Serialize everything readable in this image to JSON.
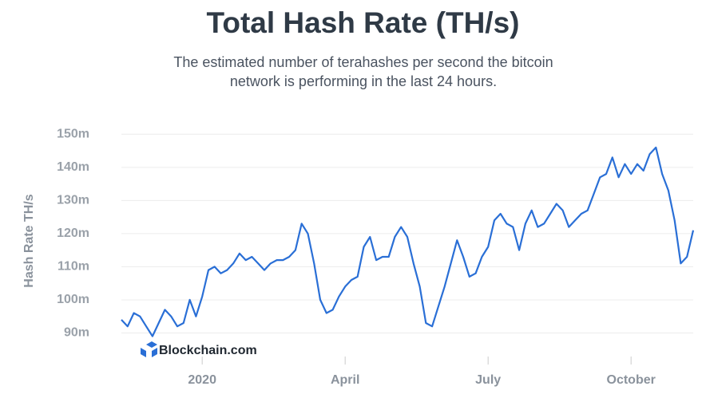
{
  "chart_data": {
    "type": "line",
    "title": "Total Hash Rate (TH/s)",
    "subtitle": "The estimated number of terahashes per second the bitcoin network is performing in the last 24 hours.",
    "ylabel": "Hash Rate TH/s",
    "watermark": "Blockchain.com",
    "categories": [
      null,
      null,
      null,
      null,
      null,
      null,
      null,
      null,
      null,
      null,
      null,
      null,
      null,
      "2020",
      null,
      null,
      null,
      null,
      null,
      null,
      null,
      null,
      null,
      null,
      null,
      null,
      null,
      null,
      null,
      null,
      null,
      null,
      null,
      null,
      null,
      null,
      "April",
      null,
      null,
      null,
      null,
      null,
      null,
      null,
      null,
      null,
      null,
      null,
      null,
      null,
      null,
      null,
      null,
      null,
      null,
      null,
      null,
      null,
      null,
      "July",
      null,
      null,
      null,
      null,
      null,
      null,
      null,
      null,
      null,
      null,
      null,
      null,
      null,
      null,
      null,
      null,
      null,
      null,
      null,
      null,
      null,
      null,
      "October",
      null,
      null,
      null,
      null,
      null,
      null,
      null,
      null,
      null,
      null
    ],
    "series": [
      {
        "name": "Hash Rate",
        "color": "#2a6fd6",
        "values": [
          94000000,
          92000000,
          96000000,
          95000000,
          92000000,
          89000000,
          93000000,
          97000000,
          95000000,
          92000000,
          93000000,
          100000000,
          95000000,
          101000000,
          109000000,
          110000000,
          108000000,
          109000000,
          111000000,
          114000000,
          112000000,
          113000000,
          111000000,
          109000000,
          111000000,
          112000000,
          112000000,
          113000000,
          115000000,
          123000000,
          120000000,
          111000000,
          100000000,
          96000000,
          97000000,
          101000000,
          104000000,
          106000000,
          107000000,
          116000000,
          119000000,
          112000000,
          113000000,
          113000000,
          119000000,
          122000000,
          119000000,
          111000000,
          104000000,
          93000000,
          92000000,
          98000000,
          104000000,
          111000000,
          118000000,
          113000000,
          107000000,
          108000000,
          113000000,
          116000000,
          124000000,
          126000000,
          123000000,
          122000000,
          115000000,
          123000000,
          127000000,
          122000000,
          123000000,
          126000000,
          129000000,
          127000000,
          122000000,
          124000000,
          126000000,
          127000000,
          132000000,
          137000000,
          138000000,
          143000000,
          137000000,
          141000000,
          138000000,
          141000000,
          139000000,
          144000000,
          146000000,
          138000000,
          133000000,
          124000000,
          111000000,
          113000000,
          121000000
        ]
      }
    ],
    "ylim": [
      86500000,
      152000000
    ],
    "yticks": [
      {
        "value": 90000000,
        "label": "90m"
      },
      {
        "value": 100000000,
        "label": "100m"
      },
      {
        "value": 110000000,
        "label": "110m"
      },
      {
        "value": 120000000,
        "label": "120m"
      },
      {
        "value": 130000000,
        "label": "130m"
      },
      {
        "value": 140000000,
        "label": "140m"
      },
      {
        "value": 150000000,
        "label": "150m"
      }
    ],
    "grid": true
  }
}
